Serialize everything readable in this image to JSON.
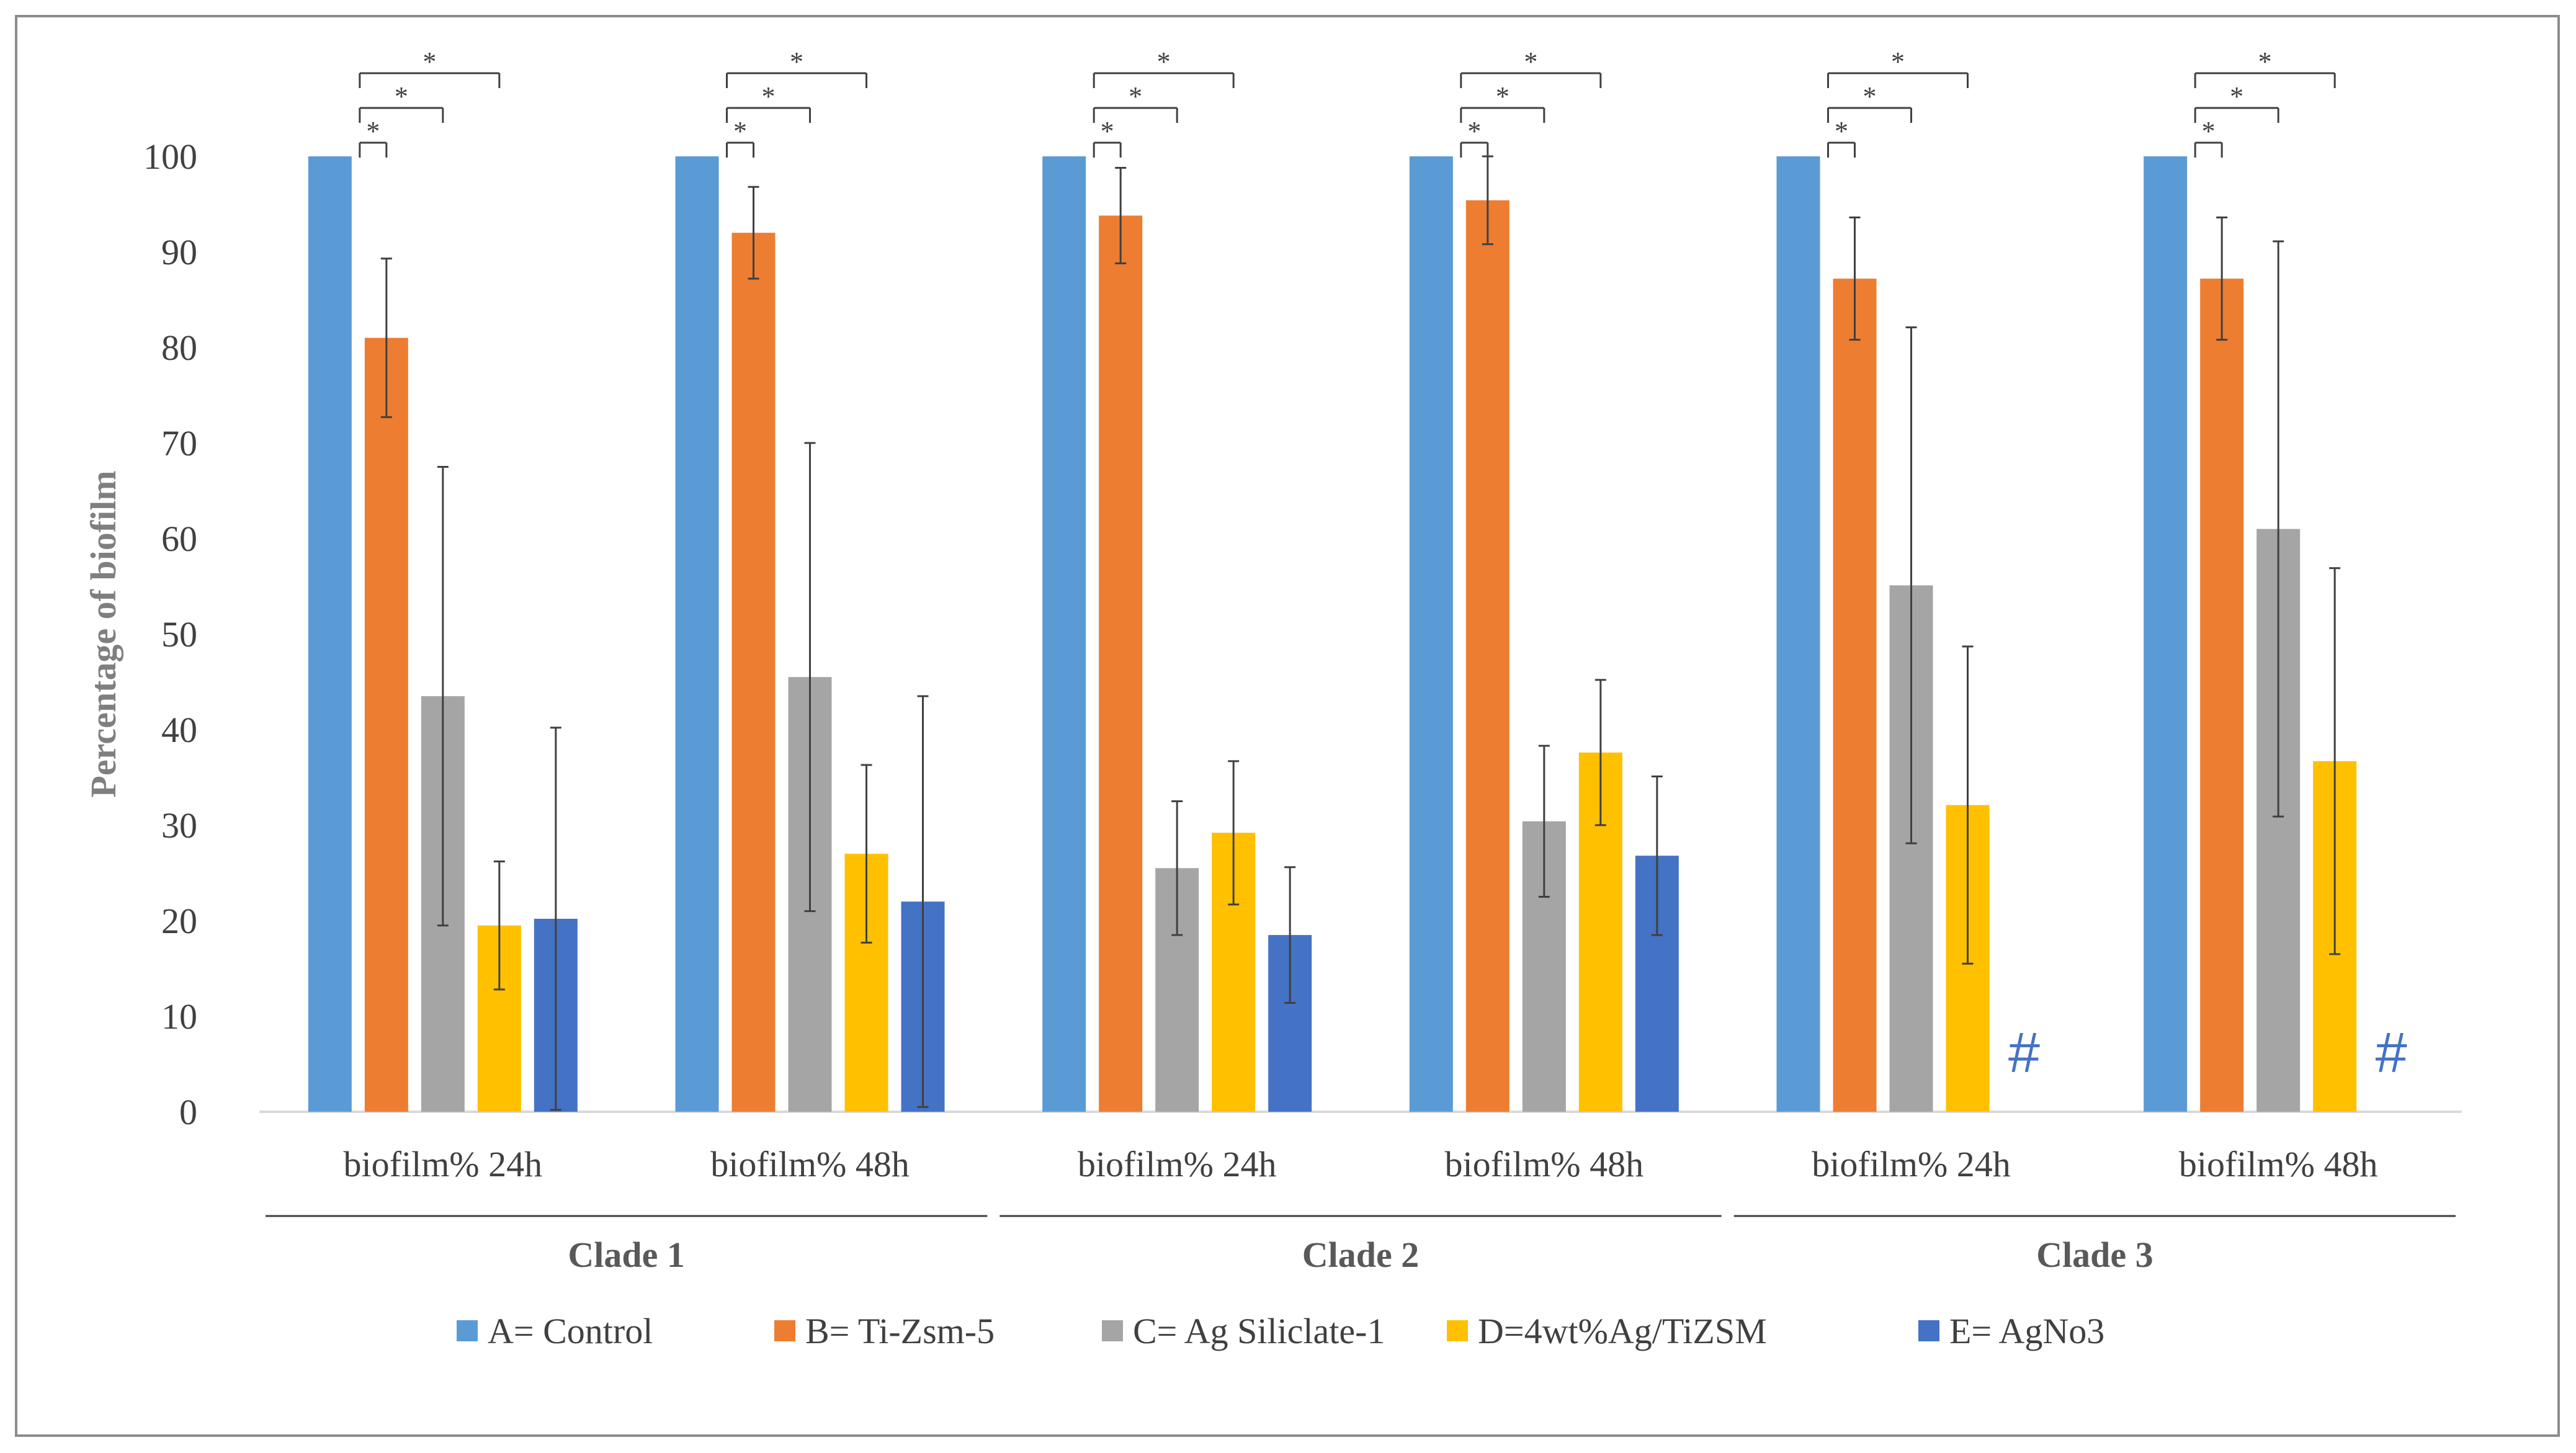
{
  "chart_data": {
    "type": "bar",
    "title": "",
    "xlabel": "",
    "ylabel": "Percentage of biofilm",
    "ylim": [
      0,
      100
    ],
    "yticks": [
      0,
      10,
      20,
      30,
      40,
      50,
      60,
      70,
      80,
      90,
      100
    ],
    "grid": false,
    "legend_position": "bottom",
    "series": [
      {
        "key": "A",
        "name": "A= Control",
        "color": "#5b9bd5"
      },
      {
        "key": "B",
        "name": "B= Ti-Zsm-5",
        "color": "#ed7d31"
      },
      {
        "key": "C",
        "name": "C= Ag Siliclate-1",
        "color": "#a5a5a5"
      },
      {
        "key": "D",
        "name": "D=4wt%Ag/TiZSM",
        "color": "#ffc000"
      },
      {
        "key": "E",
        "name": "E= AgNo3",
        "color": "#4472c4"
      }
    ],
    "groups": [
      {
        "label": "Clade 1",
        "categories": [
          {
            "label": "biofilm% 24h",
            "values": [
              100,
              81,
              43.5,
              19.5,
              20.2
            ],
            "errors": [
              0,
              8.3,
              24,
              6.7,
              20
            ],
            "missing_marker": ""
          },
          {
            "label": "biofilm% 48h",
            "values": [
              100,
              92,
              45.5,
              27,
              22
            ],
            "errors": [
              0,
              4.8,
              24.5,
              9.3,
              21.5
            ],
            "missing_marker": ""
          }
        ]
      },
      {
        "label": "Clade 2",
        "categories": [
          {
            "label": "biofilm% 24h",
            "values": [
              100,
              93.8,
              25.5,
              29.2,
              18.5
            ],
            "errors": [
              0,
              5,
              7,
              7.5,
              7.1
            ],
            "missing_marker": ""
          },
          {
            "label": "biofilm% 48h",
            "values": [
              100,
              95.4,
              30.4,
              37.6,
              26.8
            ],
            "errors": [
              0,
              4.6,
              7.9,
              7.6,
              8.3
            ],
            "missing_marker": ""
          }
        ]
      },
      {
        "label": "Clade 3",
        "categories": [
          {
            "label": "biofilm% 24h",
            "values": [
              100,
              87.2,
              55.1,
              32.1,
              null
            ],
            "errors": [
              0,
              6.4,
              27,
              16.6,
              0
            ],
            "missing_marker": "#"
          },
          {
            "label": "biofilm% 48h",
            "values": [
              100,
              87.2,
              61,
              36.7,
              null
            ],
            "errors": [
              0,
              6.4,
              30.1,
              20.2,
              0
            ],
            "missing_marker": "#"
          }
        ]
      }
    ],
    "significance": {
      "marker": "*",
      "comparisons": [
        "B",
        "C",
        "D"
      ],
      "versus": "A"
    }
  }
}
